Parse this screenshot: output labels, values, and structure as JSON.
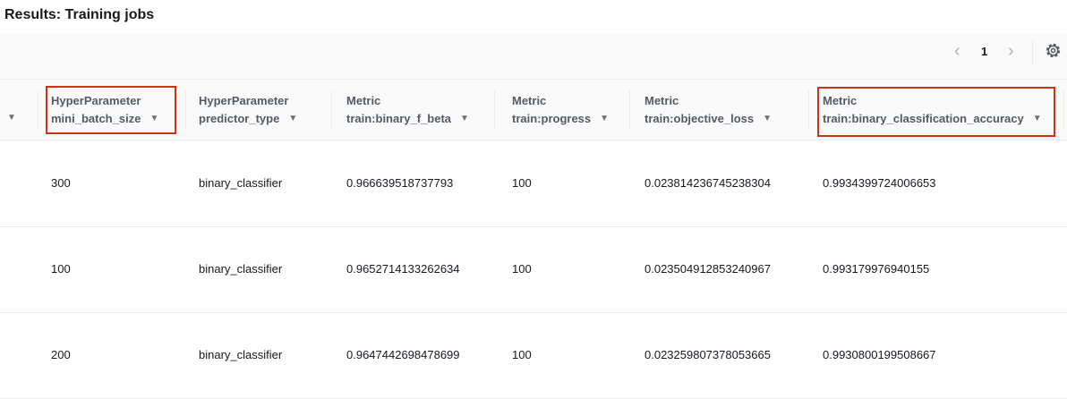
{
  "title": "Results: Training jobs",
  "pagination": {
    "current_page": "1"
  },
  "columns": [
    {
      "line1": "",
      "line2": ""
    },
    {
      "line1": "HyperParameter",
      "line2": "mini_batch_size",
      "highlighted": true
    },
    {
      "line1": "HyperParameter",
      "line2": "predictor_type"
    },
    {
      "line1": "Metric",
      "line2": "train:binary_f_beta"
    },
    {
      "line1": "Metric",
      "line2": "train:progress"
    },
    {
      "line1": "Metric",
      "line2": "train:objective_loss"
    },
    {
      "line1": "Metric",
      "line2": "train:binary_classification_accuracy",
      "highlighted": true
    }
  ],
  "rows": [
    [
      "300",
      "binary_classifier",
      "0.966639518737793",
      "100",
      "0.023814236745238304",
      "0.9934399724006653"
    ],
    [
      "100",
      "binary_classifier",
      "0.9652714133262634",
      "100",
      "0.023504912853240967",
      "0.993179976940155"
    ],
    [
      "200",
      "binary_classifier",
      "0.9647442698478699",
      "100",
      "0.023259807378053665",
      "0.9930800199508667"
    ]
  ],
  "colors": {
    "highlight": "#d13212",
    "header_bg": "#fafafa"
  }
}
